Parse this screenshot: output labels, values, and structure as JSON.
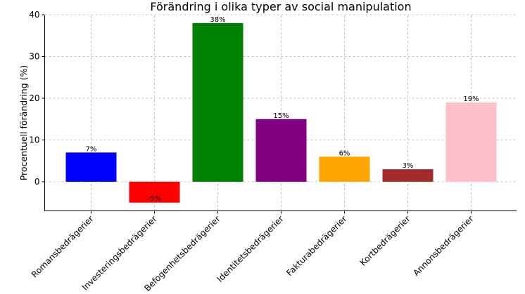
{
  "chart_data": {
    "type": "bar",
    "title": "Förändring i olika typer av social manipulation",
    "xlabel": "",
    "ylabel": "Procentuell förändring (%)",
    "categories": [
      "Romansbedrägerier",
      "Investeringsbedrägerier",
      "Befogenhetsbedrägerier",
      "Identitetsbedrägerier",
      "Fakturabedrägerier",
      "Kortbedrägerier",
      "Annonsbedrägerier"
    ],
    "values": [
      7,
      -5,
      38,
      15,
      6,
      3,
      19
    ],
    "data_labels": [
      "7%",
      "-5%",
      "38%",
      "15%",
      "6%",
      "3%",
      "19%"
    ],
    "colors": [
      "#0000ff",
      "#ff0000",
      "#008000",
      "#800080",
      "#ffa500",
      "#a52a2a",
      "#ffc0cb"
    ],
    "ylim": [
      -7,
      40
    ],
    "yticks": [
      0,
      10,
      20,
      30,
      40
    ],
    "ytick_labels": [
      "0",
      "10",
      "20",
      "30",
      "40"
    ],
    "grid": true,
    "legend": "none"
  }
}
